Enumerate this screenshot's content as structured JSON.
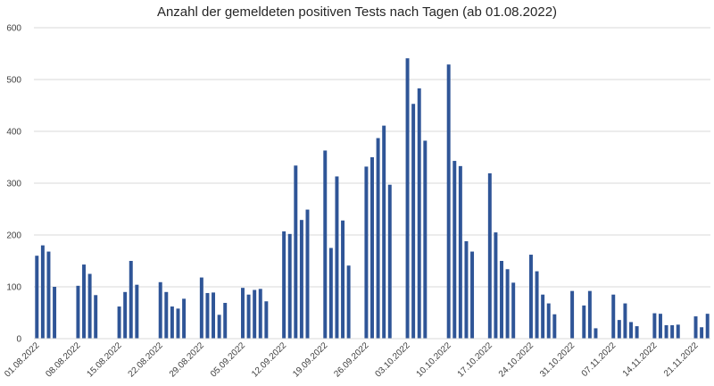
{
  "chart_data": {
    "type": "bar",
    "title": "Anzahl der gemeldeten positiven Tests nach Tagen (ab 01.08.2022)",
    "xlabel": "",
    "ylabel": "",
    "ylim": [
      0,
      600
    ],
    "yticks": [
      0,
      100,
      200,
      300,
      400,
      500,
      600
    ],
    "grid": true,
    "color": "#2f5597",
    "xtick_labels": [
      "01.08.2022",
      "08.08.2022",
      "15.08.2022",
      "22.08.2022",
      "29.08.2022",
      "05.09.2022",
      "12.09.2022",
      "19.09.2022",
      "26.09.2022",
      "03.10.2022",
      "10.10.2022",
      "17.10.2022",
      "24.10.2022",
      "31.10.2022",
      "07.11.2022",
      "14.11.2022",
      "21.11.2022"
    ],
    "values": [
      160,
      180,
      168,
      100,
      0,
      0,
      0,
      102,
      143,
      125,
      84,
      0,
      0,
      0,
      62,
      90,
      150,
      104,
      0,
      0,
      0,
      109,
      90,
      62,
      58,
      77,
      0,
      0,
      118,
      88,
      89,
      46,
      69,
      0,
      0,
      98,
      85,
      94,
      96,
      72,
      0,
      0,
      207,
      202,
      334,
      229,
      249,
      0,
      0,
      363,
      175,
      313,
      228,
      141,
      0,
      0,
      332,
      350,
      387,
      411,
      297,
      0,
      0,
      541,
      453,
      483,
      382,
      0,
      0,
      0,
      529,
      343,
      333,
      188,
      168,
      0,
      0,
      319,
      205,
      150,
      134,
      108,
      0,
      0,
      162,
      130,
      85,
      68,
      47,
      0,
      0,
      92,
      0,
      64,
      92,
      20,
      0,
      0,
      85,
      36,
      68,
      32,
      24,
      0,
      0,
      49,
      48,
      26,
      26,
      27,
      0,
      0,
      43,
      22,
      48
    ]
  }
}
